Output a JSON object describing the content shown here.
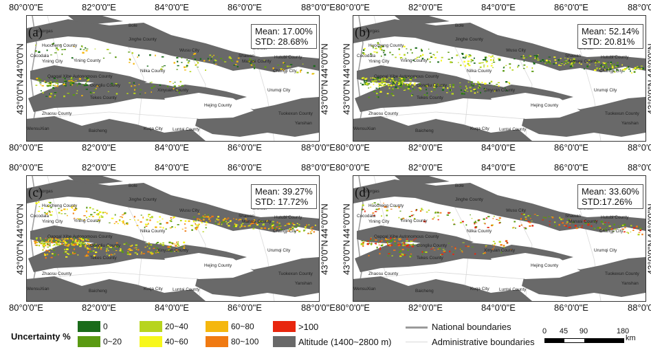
{
  "panels": [
    {
      "letter": "(a)",
      "mean": "Mean: 17.00%",
      "std": "STD: 28.68%"
    },
    {
      "letter": "(b)",
      "mean": "Mean: 52.14%",
      "std": "STD: 20.81%"
    },
    {
      "letter": "(c)",
      "mean": "Mean: 39.27%",
      "std": "STD: 17.72%"
    },
    {
      "letter": "(d)",
      "mean": "Mean: 33.60%",
      "std": "STD:17.26%"
    }
  ],
  "lon_ticks": [
    "80°0'0\"E",
    "82°0'0\"E",
    "84°0'0\"E",
    "86°0'0\"E",
    "88°0'0\"E"
  ],
  "lat_ticks": [
    "44°0'0\"N",
    "43°0'0\"N"
  ],
  "place_names": [
    "Bole",
    "Khorgas",
    "Jinghe County",
    "Huocheng County",
    "Wusu City",
    "Shihezi",
    "Cocodala",
    "Yining City",
    "Yining County",
    "Shawan",
    "Manasi County",
    "Hutubi County",
    "Nilka County",
    "Qapqal Xibe Autonomous County",
    "Changji City",
    "Gongliu County",
    "Xinyuan County",
    "Urumqi City",
    "Tekes County",
    "Zhaosu County",
    "Hejing County",
    "Tuokexun County",
    "WensuXian",
    "Baicheng",
    "Kuqa City",
    "Luntai County",
    "Yanshan"
  ],
  "legend": {
    "title": "Uncertainty %",
    "classes": [
      {
        "label": "0",
        "color": "#1a6b1a"
      },
      {
        "label": "0~20",
        "color": "#5a9a12"
      },
      {
        "label": "20~40",
        "color": "#b7d41e"
      },
      {
        "label": "40~60",
        "color": "#f7f71c"
      },
      {
        "label": "60~80",
        "color": "#f5b70e"
      },
      {
        "label": "80~100",
        "color": "#f07a12"
      },
      {
        "label": ">100",
        "color": "#e8260e"
      }
    ],
    "altitude": {
      "label": "Altitude (1400~2800 m)",
      "color": "#696969"
    },
    "national": "National boundaries",
    "admin": "Administrative boundaries",
    "scale_ticks": [
      "0",
      "45",
      "90",
      "180"
    ],
    "scale_unit": "km"
  }
}
